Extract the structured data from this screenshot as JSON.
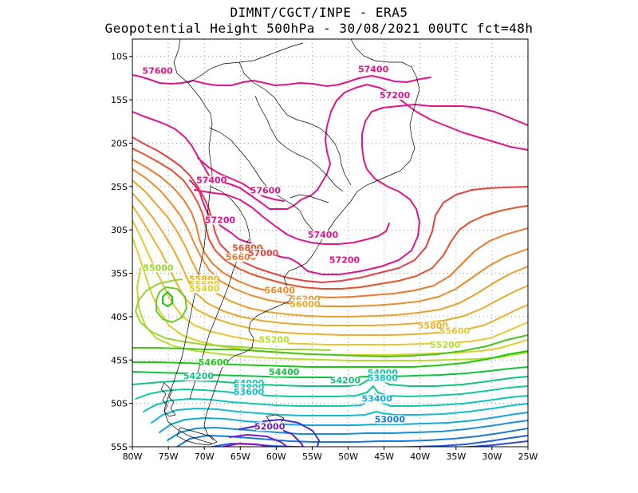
{
  "title_line1": "DIMNT/CGCT/INPE  -  ERA5",
  "title_line2": "Geopotential Height 500hPa  -  30/08/2021 00UTC fct=48h",
  "map": {
    "lon_range": [
      -80,
      -25
    ],
    "lat_range": [
      -55,
      -8
    ],
    "lon_ticks": [
      {
        "value": -80,
        "label": "80W"
      },
      {
        "value": -75,
        "label": "75W"
      },
      {
        "value": -70,
        "label": "70W"
      },
      {
        "value": -65,
        "label": "65W"
      },
      {
        "value": -60,
        "label": "60W"
      },
      {
        "value": -55,
        "label": "55W"
      },
      {
        "value": -50,
        "label": "50W"
      },
      {
        "value": -45,
        "label": "45W"
      },
      {
        "value": -40,
        "label": "40W"
      },
      {
        "value": -35,
        "label": "35W"
      },
      {
        "value": -30,
        "label": "30W"
      },
      {
        "value": -25,
        "label": "25W"
      }
    ],
    "lat_ticks": [
      {
        "value": -10,
        "label": "10S"
      },
      {
        "value": -15,
        "label": "15S"
      },
      {
        "value": -20,
        "label": "20S"
      },
      {
        "value": -25,
        "label": "25S"
      },
      {
        "value": -30,
        "label": "30S"
      },
      {
        "value": -35,
        "label": "35S"
      },
      {
        "value": -40,
        "label": "40S"
      },
      {
        "value": -45,
        "label": "45S"
      },
      {
        "value": -50,
        "label": "50S"
      },
      {
        "value": -55,
        "label": "55S"
      }
    ],
    "contour_labels": [
      {
        "text": "57600",
        "lon": -76.5,
        "lat": -12.0,
        "color": "#e0148c"
      },
      {
        "text": "57400",
        "lon": -46.5,
        "lat": -11.8,
        "color": "#e0148c"
      },
      {
        "text": "57200",
        "lon": -43.5,
        "lat": -14.8,
        "color": "#e0148c"
      },
      {
        "text": "57400",
        "lon": -69.0,
        "lat": -24.6,
        "color": "#e0148c"
      },
      {
        "text": "57600",
        "lon": -61.5,
        "lat": -25.8,
        "color": "#e0148c"
      },
      {
        "text": "57200",
        "lon": -67.8,
        "lat": -29.2,
        "color": "#e0148c"
      },
      {
        "text": "57400",
        "lon": -53.5,
        "lat": -30.9,
        "color": "#e0148c"
      },
      {
        "text": "57200",
        "lon": -50.5,
        "lat": -33.8,
        "color": "#e0148c"
      },
      {
        "text": "56800",
        "lon": -64.0,
        "lat": -32.4,
        "color": "#e8502a"
      },
      {
        "text": "56600",
        "lon": -64.9,
        "lat": -33.5,
        "color": "#ec7a2c"
      },
      {
        "text": "57000",
        "lon": -61.8,
        "lat": -33.0,
        "color": "#e84040"
      },
      {
        "text": "55000",
        "lon": -76.4,
        "lat": -34.7,
        "color": "#9ad434"
      },
      {
        "text": "55800",
        "lon": -70.0,
        "lat": -36.0,
        "color": "#eab228"
      },
      {
        "text": "55600",
        "lon": -70.0,
        "lat": -36.6,
        "color": "#e8c630"
      },
      {
        "text": "55400",
        "lon": -70.0,
        "lat": -37.1,
        "color": "#d8d030"
      },
      {
        "text": "56400",
        "lon": -59.5,
        "lat": -37.3,
        "color": "#ec8c2c"
      },
      {
        "text": "56200",
        "lon": -56.0,
        "lat": -38.3,
        "color": "#eba02c"
      },
      {
        "text": "56000",
        "lon": -56.0,
        "lat": -38.9,
        "color": "#eaa82c"
      },
      {
        "text": "55800",
        "lon": -38.2,
        "lat": -41.4,
        "color": "#eab228"
      },
      {
        "text": "55600",
        "lon": -35.2,
        "lat": -42.0,
        "color": "#e8c630"
      },
      {
        "text": "55200",
        "lon": -60.3,
        "lat": -43.0,
        "color": "#b6dc30"
      },
      {
        "text": "55200",
        "lon": -36.5,
        "lat": -43.6,
        "color": "#b6dc30"
      },
      {
        "text": "54600",
        "lon": -68.7,
        "lat": -45.6,
        "color": "#1ec814"
      },
      {
        "text": "54400",
        "lon": -58.9,
        "lat": -46.7,
        "color": "#10c43c"
      },
      {
        "text": "54200",
        "lon": -70.8,
        "lat": -47.2,
        "color": "#12c478"
      },
      {
        "text": "54000",
        "lon": -45.2,
        "lat": -46.8,
        "color": "#12c8a0"
      },
      {
        "text": "53800",
        "lon": -45.2,
        "lat": -47.4,
        "color": "#10c6b8"
      },
      {
        "text": "54200",
        "lon": -50.4,
        "lat": -47.7,
        "color": "#12c478"
      },
      {
        "text": "54000",
        "lon": -63.8,
        "lat": -48.0,
        "color": "#12c8a0"
      },
      {
        "text": "53800",
        "lon": -63.8,
        "lat": -48.5,
        "color": "#10c6b8"
      },
      {
        "text": "53600",
        "lon": -63.8,
        "lat": -49.0,
        "color": "#14bccc"
      },
      {
        "text": "53400",
        "lon": -46.0,
        "lat": -49.8,
        "color": "#16a8d8"
      },
      {
        "text": "53000",
        "lon": -44.2,
        "lat": -52.2,
        "color": "#1a7ad8"
      },
      {
        "text": "52000",
        "lon": -60.9,
        "lat": -53.0,
        "color": "#7818c8"
      }
    ]
  }
}
